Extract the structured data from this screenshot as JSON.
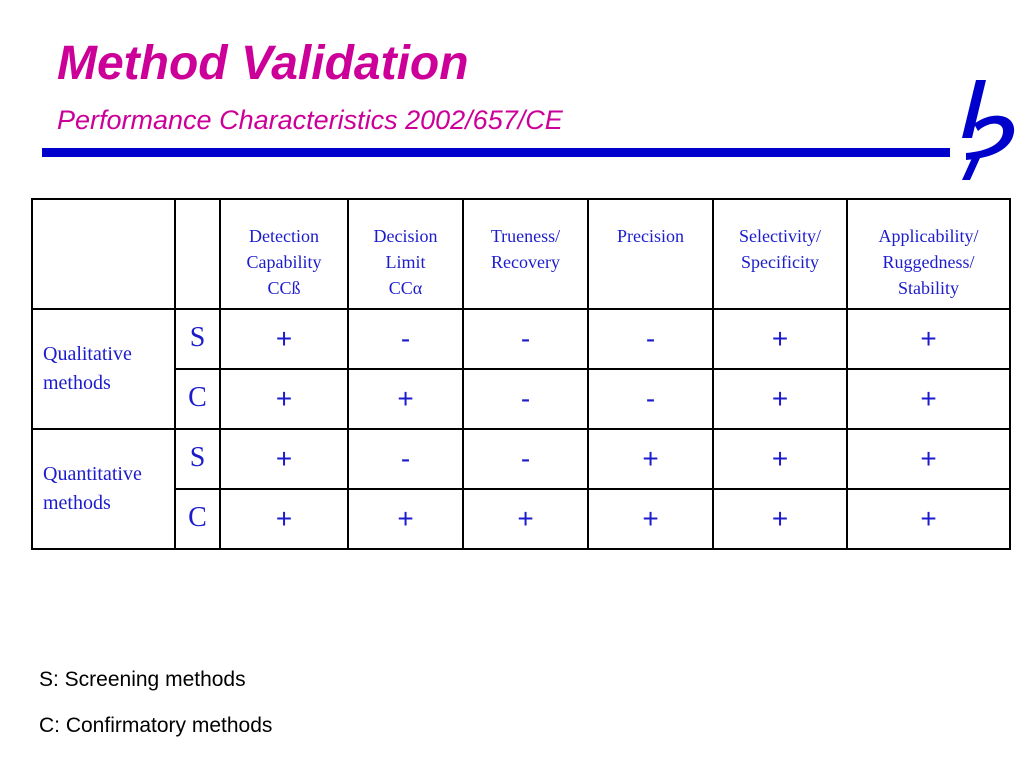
{
  "slide": {
    "title": "Method Validation",
    "subtitle": "Performance Characteristics  2002/657/CE"
  },
  "colors": {
    "title": "#cc0099",
    "accent": "#0000cc",
    "table_text": "#1c1ccc"
  },
  "logo": {
    "icon": "jrc-logo-icon"
  },
  "table": {
    "headers": [
      [
        "Detection",
        "Capability",
        "CCß"
      ],
      [
        "Decision",
        "Limit",
        "CCα"
      ],
      [
        "Trueness/",
        "Recovery"
      ],
      [
        "Precision"
      ],
      [
        "Selectivity/",
        "Specificity"
      ],
      [
        "Applicability/",
        "Ruggedness/",
        "Stability"
      ]
    ],
    "groups": [
      {
        "label": [
          "Qualitative",
          "methods"
        ]
      },
      {
        "label": [
          "Quantitative",
          "methods"
        ]
      }
    ],
    "rows": [
      {
        "code": "S",
        "values": [
          "+",
          "-",
          "-",
          "-",
          "+",
          "+"
        ]
      },
      {
        "code": "C",
        "values": [
          "+",
          "+",
          "-",
          "-",
          "+",
          "+"
        ]
      },
      {
        "code": "S",
        "values": [
          "+",
          "-",
          "-",
          "+",
          "+",
          "+"
        ]
      },
      {
        "code": "C",
        "values": [
          "+",
          "+",
          "+",
          "+",
          "+",
          "+"
        ]
      }
    ]
  },
  "legend": {
    "screening": "S: Screening methods",
    "confirmatory": "C: Confirmatory methods"
  }
}
